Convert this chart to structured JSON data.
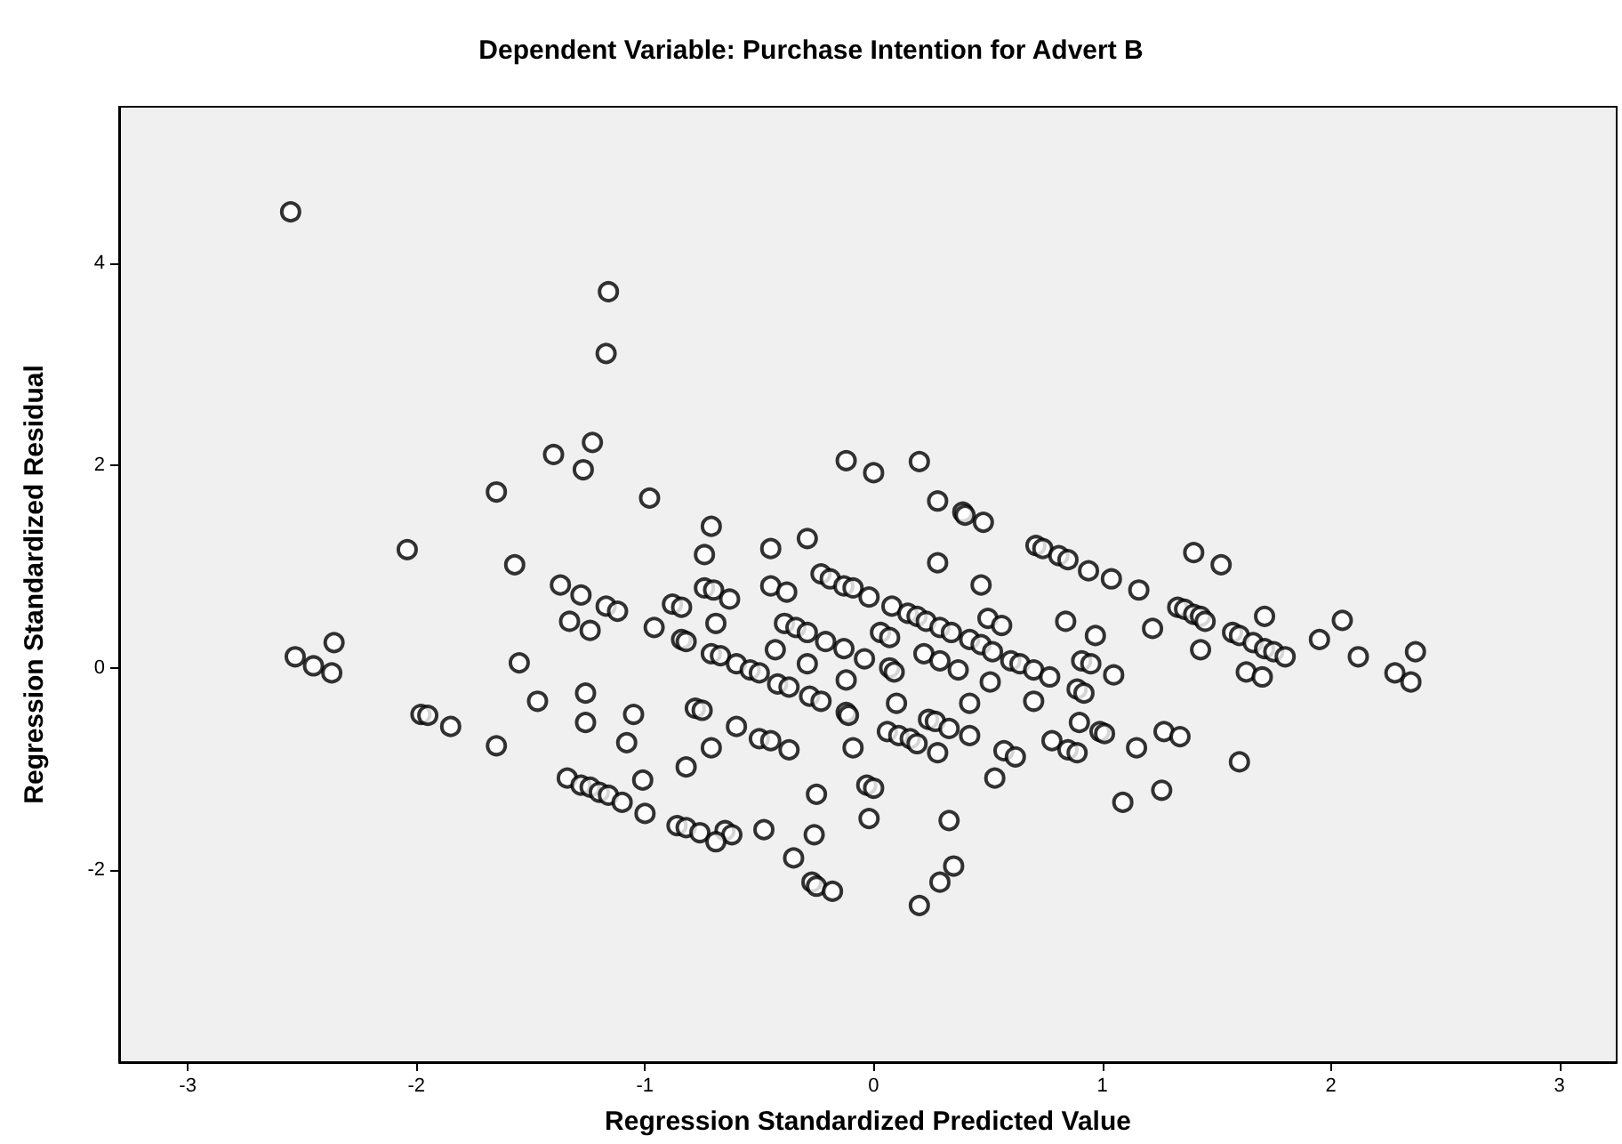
{
  "chart_data": {
    "type": "scatter",
    "title": "Dependent Variable: Purchase Intention for Advert B",
    "xlabel": "Regression Standardized Predicted Value",
    "ylabel": "Regression Standardized Residual",
    "x": [
      -2.55,
      -2.04,
      -2.53,
      -2.45,
      -2.37,
      -2.36,
      -1.98,
      -1.95,
      -1.85,
      -1.65,
      -1.65,
      -1.57,
      -1.55,
      -1.47,
      -1.4,
      -1.37,
      -1.34,
      -1.33,
      -1.28,
      -1.28,
      -1.27,
      -1.26,
      -1.26,
      -1.24,
      -1.24,
      -1.23,
      -1.2,
      -1.17,
      -1.17,
      -1.16,
      -1.16,
      -1.12,
      -1.1,
      -1.08,
      -1.05,
      -1.01,
      -1.0,
      -0.98,
      -0.96,
      -0.88,
      -0.86,
      -0.84,
      -0.84,
      -0.82,
      -0.82,
      -0.82,
      -0.78,
      -0.75,
      -0.74,
      -0.74,
      -0.71,
      -0.71,
      -0.71,
      -0.7,
      -0.69,
      -0.67,
      -0.63,
      -0.6,
      -0.6,
      -0.54,
      -0.5,
      -0.5,
      -0.45,
      -0.45,
      -0.45,
      -0.43,
      -0.42,
      -0.39,
      -0.38,
      -0.37,
      -0.37,
      -0.34,
      -0.29,
      -0.29,
      -0.29,
      -0.28,
      -0.25,
      -0.23,
      -0.23,
      -0.21,
      -0.19,
      -0.13,
      -0.13,
      -0.12,
      -0.12,
      -0.12,
      -0.11,
      -0.09,
      -0.09,
      -0.04,
      -0.03,
      -0.02,
      -0.02,
      0.0,
      0.0,
      0.03,
      0.06,
      0.07,
      0.07,
      0.08,
      0.09,
      0.1,
      0.11,
      0.15,
      0.16,
      0.19,
      0.19,
      0.2,
      0.22,
      0.23,
      0.24,
      0.27,
      0.28,
      0.28,
      0.28,
      0.29,
      0.29,
      0.33,
      0.33,
      0.34,
      0.37,
      0.39,
      0.4,
      0.42,
      0.42,
      0.42,
      0.47,
      0.47,
      0.48,
      0.5,
      0.51,
      0.52,
      0.53,
      0.56,
      0.57,
      0.6,
      0.62,
      0.64,
      0.7,
      0.7,
      0.71,
      0.74,
      0.77,
      0.78,
      0.81,
      0.84,
      0.85,
      0.85,
      0.89,
      0.89,
      0.9,
      0.91,
      0.92,
      0.94,
      0.95,
      0.97,
      0.99,
      1.01,
      1.04,
      1.05,
      1.09,
      1.15,
      1.16,
      1.22,
      1.26,
      1.27,
      1.33,
      1.34,
      1.36,
      1.4,
      1.4,
      1.43,
      1.43,
      1.45,
      1.52,
      1.57,
      1.6,
      1.6,
      1.63,
      1.66,
      1.7,
      1.71,
      1.71,
      1.75,
      1.8,
      1.95,
      2.05,
      2.12,
      2.28,
      2.35,
      2.37,
      -0.65,
      -0.62,
      -0.48,
      -0.35,
      -0.27,
      -0.25,
      -0.18,
      0.2,
      0.29,
      0.35,
      -0.76,
      -0.69,
      -0.26
    ],
    "values": [
      4.51,
      1.17,
      0.11,
      0.02,
      -0.05,
      0.25,
      -0.46,
      -0.47,
      -0.58,
      -0.77,
      1.74,
      1.02,
      0.05,
      -0.33,
      2.11,
      0.82,
      -1.09,
      0.46,
      0.72,
      -1.16,
      1.96,
      -0.25,
      -0.54,
      0.37,
      -1.18,
      2.23,
      -1.23,
      0.61,
      3.11,
      3.72,
      -1.26,
      0.56,
      -1.33,
      -0.74,
      -0.46,
      -1.11,
      -1.44,
      1.68,
      0.4,
      0.63,
      -1.56,
      0.6,
      0.28,
      0.26,
      -0.98,
      -1.58,
      -0.4,
      -0.42,
      1.12,
      0.79,
      1.4,
      0.14,
      -0.79,
      0.77,
      0.44,
      0.12,
      0.68,
      0.04,
      -0.58,
      -0.02,
      -0.05,
      -0.7,
      1.18,
      0.81,
      -0.72,
      0.18,
      -0.16,
      0.44,
      0.75,
      -0.19,
      -0.81,
      0.4,
      0.04,
      1.28,
      0.35,
      -0.28,
      -1.25,
      0.93,
      -0.33,
      0.26,
      0.88,
      0.81,
      0.19,
      -0.12,
      -0.44,
      2.05,
      -0.47,
      0.79,
      -0.79,
      0.09,
      -1.16,
      0.7,
      -1.49,
      1.93,
      -1.19,
      0.35,
      -0.63,
      0.3,
      0.0,
      0.61,
      -0.04,
      -0.35,
      -0.67,
      0.54,
      -0.7,
      0.51,
      -0.75,
      2.04,
      0.14,
      0.46,
      -0.51,
      -0.53,
      1.65,
      1.04,
      -0.84,
      0.4,
      0.07,
      -1.51,
      -0.6,
      0.35,
      -0.02,
      1.54,
      1.51,
      0.28,
      -0.35,
      -0.67,
      0.23,
      0.82,
      1.44,
      0.49,
      -0.14,
      0.16,
      -1.09,
      0.42,
      -0.82,
      0.07,
      -0.88,
      0.04,
      -0.02,
      -0.33,
      1.21,
      1.18,
      -0.09,
      -0.72,
      1.11,
      0.46,
      1.07,
      -0.81,
      -0.21,
      -0.84,
      -0.54,
      0.07,
      -0.25,
      0.96,
      0.04,
      0.32,
      -0.63,
      -0.65,
      0.88,
      -0.07,
      -1.33,
      -0.79,
      0.77,
      0.39,
      -1.21,
      -0.63,
      0.6,
      -0.68,
      0.58,
      1.14,
      0.53,
      0.51,
      0.18,
      0.46,
      1.02,
      0.35,
      0.32,
      -0.93,
      -0.04,
      0.25,
      -0.09,
      0.51,
      0.19,
      0.16,
      0.11,
      0.28,
      0.47,
      0.11,
      -0.05,
      -0.14,
      0.16,
      -1.61,
      -1.65,
      -1.6,
      -1.88,
      -2.12,
      -2.16,
      -2.21,
      -2.35,
      -2.12,
      -1.96,
      -1.63,
      -1.72,
      -1.65
    ],
    "color": "#000000",
    "marker": "circle",
    "xlim": [
      -3.3,
      3.25
    ],
    "xticks": [
      -3,
      -2,
      -1,
      0,
      1,
      2,
      3
    ],
    "ylim": [
      -3.9,
      5.55
    ],
    "yticks": [
      -2,
      0,
      2,
      4
    ],
    "grid": false
  }
}
